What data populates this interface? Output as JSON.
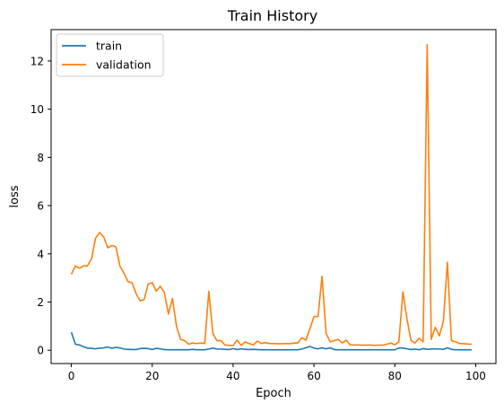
{
  "chart_data": {
    "type": "line",
    "title": "Train History",
    "xlabel": "Epoch",
    "ylabel": "loss",
    "xlim": [
      -5,
      105
    ],
    "ylim": [
      -0.55,
      13.3
    ],
    "xticks": [
      0,
      20,
      40,
      60,
      80,
      100
    ],
    "yticks": [
      0,
      2,
      4,
      6,
      8,
      10,
      12
    ],
    "grid": false,
    "legend_position": "top-left",
    "series": [
      {
        "name": "train",
        "color": "#1f77b4",
        "x": [
          0,
          1,
          2,
          3,
          4,
          5,
          6,
          7,
          8,
          9,
          10,
          11,
          12,
          13,
          14,
          15,
          16,
          17,
          18,
          19,
          20,
          21,
          22,
          23,
          24,
          25,
          26,
          27,
          28,
          29,
          30,
          31,
          32,
          33,
          34,
          35,
          36,
          37,
          38,
          39,
          40,
          41,
          42,
          43,
          44,
          45,
          46,
          47,
          48,
          49,
          50,
          51,
          52,
          53,
          54,
          55,
          56,
          57,
          58,
          59,
          60,
          61,
          62,
          63,
          64,
          65,
          66,
          67,
          68,
          69,
          70,
          71,
          72,
          73,
          74,
          75,
          76,
          77,
          78,
          79,
          80,
          81,
          82,
          83,
          84,
          85,
          86,
          87,
          88,
          89,
          90,
          91,
          92,
          93,
          94,
          95,
          96,
          97,
          98,
          99
        ],
        "values": [
          0.75,
          0.25,
          0.22,
          0.15,
          0.09,
          0.08,
          0.06,
          0.09,
          0.1,
          0.14,
          0.08,
          0.12,
          0.1,
          0.05,
          0.04,
          0.03,
          0.03,
          0.07,
          0.08,
          0.07,
          0.03,
          0.08,
          0.06,
          0.03,
          0.02,
          0.02,
          0.02,
          0.02,
          0.02,
          0.02,
          0.04,
          0.02,
          0.02,
          0.02,
          0.05,
          0.09,
          0.05,
          0.05,
          0.04,
          0.03,
          0.07,
          0.03,
          0.06,
          0.04,
          0.03,
          0.04,
          0.03,
          0.02,
          0.02,
          0.02,
          0.02,
          0.02,
          0.02,
          0.02,
          0.02,
          0.02,
          0.02,
          0.05,
          0.1,
          0.16,
          0.09,
          0.06,
          0.1,
          0.06,
          0.1,
          0.03,
          0.02,
          0.02,
          0.02,
          0.02,
          0.02,
          0.02,
          0.02,
          0.02,
          0.02,
          0.02,
          0.02,
          0.02,
          0.02,
          0.02,
          0.02,
          0.1,
          0.09,
          0.06,
          0.03,
          0.05,
          0.02,
          0.07,
          0.04,
          0.05,
          0.06,
          0.05,
          0.04,
          0.1,
          0.04,
          0.02,
          0.02,
          0.02,
          0.02,
          0.02
        ]
      },
      {
        "name": "validation",
        "color": "#ff7f0e",
        "x": [
          0,
          1,
          2,
          3,
          4,
          5,
          6,
          7,
          8,
          9,
          10,
          11,
          12,
          13,
          14,
          15,
          16,
          17,
          18,
          19,
          20,
          21,
          22,
          23,
          24,
          25,
          26,
          27,
          28,
          29,
          30,
          31,
          32,
          33,
          34,
          35,
          36,
          37,
          38,
          39,
          40,
          41,
          42,
          43,
          44,
          45,
          46,
          47,
          48,
          49,
          50,
          51,
          52,
          53,
          54,
          55,
          56,
          57,
          58,
          59,
          60,
          61,
          62,
          63,
          64,
          65,
          66,
          67,
          68,
          69,
          70,
          71,
          72,
          73,
          74,
          75,
          76,
          77,
          78,
          79,
          80,
          81,
          82,
          83,
          84,
          85,
          86,
          87,
          88,
          89,
          90,
          91,
          92,
          93,
          94,
          95,
          96,
          97,
          98,
          99
        ],
        "values": [
          3.15,
          3.5,
          3.4,
          3.5,
          3.5,
          3.8,
          4.65,
          4.88,
          4.7,
          4.25,
          4.35,
          4.3,
          3.5,
          3.2,
          2.85,
          2.8,
          2.35,
          2.05,
          2.1,
          2.75,
          2.8,
          2.45,
          2.65,
          2.4,
          1.5,
          2.15,
          1.0,
          0.45,
          0.4,
          0.25,
          0.3,
          0.28,
          0.3,
          0.28,
          2.45,
          0.7,
          0.4,
          0.4,
          0.22,
          0.2,
          0.2,
          0.42,
          0.2,
          0.35,
          0.28,
          0.22,
          0.38,
          0.28,
          0.32,
          0.28,
          0.28,
          0.27,
          0.27,
          0.28,
          0.27,
          0.3,
          0.3,
          0.52,
          0.42,
          0.9,
          1.4,
          1.4,
          3.07,
          0.7,
          0.35,
          0.4,
          0.45,
          0.3,
          0.42,
          0.22,
          0.22,
          0.22,
          0.21,
          0.21,
          0.22,
          0.2,
          0.21,
          0.21,
          0.25,
          0.3,
          0.23,
          0.35,
          2.42,
          1.3,
          0.4,
          0.3,
          0.5,
          0.35,
          12.68,
          0.45,
          0.95,
          0.6,
          1.2,
          3.65,
          0.4,
          0.35,
          0.28,
          0.27,
          0.26,
          0.25
        ]
      }
    ]
  }
}
